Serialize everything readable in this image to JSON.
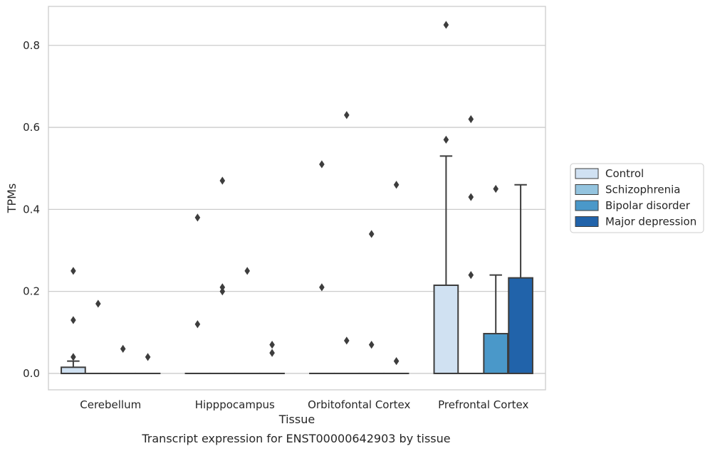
{
  "caption": "Transcript expression for ENST00000642903 by tissue",
  "chart_data": {
    "type": "box",
    "xlabel": "Tissue",
    "ylabel": "TPMs",
    "ylim": [
      -0.04,
      0.895
    ],
    "yticks": [
      0.0,
      0.2,
      0.4,
      0.6,
      0.8
    ],
    "ytick_labels": [
      "0.0",
      "0.2",
      "0.4",
      "0.6",
      "0.8"
    ],
    "grid": "horizontal",
    "legend_position": "right",
    "categories": [
      "Cerebellum",
      "Hipppocampus",
      "Orbitofontal Cortex",
      "Prefrontal Cortex"
    ],
    "series": [
      {
        "name": "Control",
        "color": "#d0e1f2",
        "boxes": [
          {
            "q1": 0.0,
            "median": 0.0,
            "q3": 0.015,
            "whisker_low": 0.0,
            "whisker_high": 0.03,
            "outliers": [
              0.25,
              0.13,
              0.04
            ]
          },
          {
            "q1": 0.0,
            "median": 0.0,
            "q3": 0.0,
            "whisker_low": 0.0,
            "whisker_high": 0.0,
            "outliers": [
              0.38,
              0.12
            ]
          },
          {
            "q1": 0.0,
            "median": 0.0,
            "q3": 0.0,
            "whisker_low": 0.0,
            "whisker_high": 0.0,
            "outliers": [
              0.51,
              0.21
            ]
          },
          {
            "q1": 0.0,
            "median": 0.0,
            "q3": 0.215,
            "whisker_low": 0.0,
            "whisker_high": 0.53,
            "outliers": [
              0.85,
              0.57
            ]
          }
        ]
      },
      {
        "name": "Schizophrenia",
        "color": "#94c4df",
        "boxes": [
          {
            "q1": 0.0,
            "median": 0.0,
            "q3": 0.0,
            "whisker_low": 0.0,
            "whisker_high": 0.0,
            "outliers": [
              0.17
            ]
          },
          {
            "q1": 0.0,
            "median": 0.0,
            "q3": 0.0,
            "whisker_low": 0.0,
            "whisker_high": 0.0,
            "outliers": [
              0.47,
              0.21,
              0.2
            ]
          },
          {
            "q1": 0.0,
            "median": 0.0,
            "q3": 0.0,
            "whisker_low": 0.0,
            "whisker_high": 0.0,
            "outliers": [
              0.63,
              0.08
            ]
          },
          {
            "q1": 0.0,
            "median": 0.0,
            "q3": 0.0,
            "whisker_low": 0.0,
            "whisker_high": 0.0,
            "outliers": [
              0.62,
              0.43,
              0.24
            ]
          }
        ]
      },
      {
        "name": "Bipolar disorder",
        "color": "#4a98c9",
        "boxes": [
          {
            "q1": 0.0,
            "median": 0.0,
            "q3": 0.0,
            "whisker_low": 0.0,
            "whisker_high": 0.0,
            "outliers": [
              0.06
            ]
          },
          {
            "q1": 0.0,
            "median": 0.0,
            "q3": 0.0,
            "whisker_low": 0.0,
            "whisker_high": 0.0,
            "outliers": [
              0.25
            ]
          },
          {
            "q1": 0.0,
            "median": 0.0,
            "q3": 0.0,
            "whisker_low": 0.0,
            "whisker_high": 0.0,
            "outliers": [
              0.34,
              0.07
            ]
          },
          {
            "q1": 0.0,
            "median": 0.0,
            "q3": 0.097,
            "whisker_low": 0.0,
            "whisker_high": 0.24,
            "outliers": [
              0.45
            ]
          }
        ]
      },
      {
        "name": "Major depression",
        "color": "#2163aa",
        "boxes": [
          {
            "q1": 0.0,
            "median": 0.0,
            "q3": 0.0,
            "whisker_low": 0.0,
            "whisker_high": 0.0,
            "outliers": [
              0.04
            ]
          },
          {
            "q1": 0.0,
            "median": 0.0,
            "q3": 0.0,
            "whisker_low": 0.0,
            "whisker_high": 0.0,
            "outliers": [
              0.07,
              0.05
            ]
          },
          {
            "q1": 0.0,
            "median": 0.0,
            "q3": 0.0,
            "whisker_low": 0.0,
            "whisker_high": 0.0,
            "outliers": [
              0.46,
              0.03
            ]
          },
          {
            "q1": 0.0,
            "median": 0.0,
            "q3": 0.233,
            "whisker_low": 0.0,
            "whisker_high": 0.46,
            "outliers": []
          }
        ]
      }
    ]
  }
}
